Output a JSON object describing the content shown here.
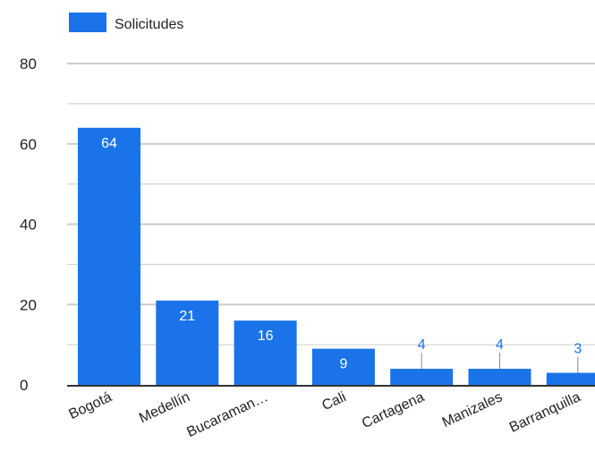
{
  "chart_data": {
    "type": "bar",
    "categories": [
      "Bogotá",
      "Medellín",
      "Bucaraman…",
      "Cali",
      "Cartagena",
      "Manizales",
      "Barranquilla"
    ],
    "series": [
      {
        "name": "Solicitudes",
        "values": [
          64,
          21,
          16,
          9,
          4,
          4,
          3
        ]
      }
    ],
    "ylim": [
      0,
      80
    ],
    "yticks": [
      0,
      20,
      40,
      60,
      80
    ],
    "grid": true,
    "legend": "top-left",
    "colors": {
      "bar": "#1a73e8",
      "grid": "#cccccc",
      "baseline": "#333333",
      "leader": "#888888"
    }
  }
}
